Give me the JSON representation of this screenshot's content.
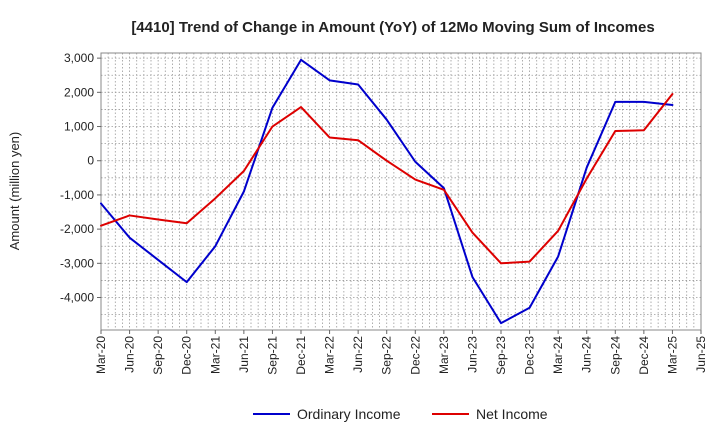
{
  "chart_data": {
    "type": "line",
    "title": "[4410]  Trend of Change in Amount (YoY) of 12Mo Moving Sum of Incomes",
    "xlabel": "",
    "ylabel": "Amount (million yen)",
    "categories": [
      "Mar-20",
      "Jun-20",
      "Sep-20",
      "Dec-20",
      "Mar-21",
      "Jun-21",
      "Sep-21",
      "Dec-21",
      "Mar-22",
      "Jun-22",
      "Sep-22",
      "Dec-22",
      "Mar-23",
      "Jun-23",
      "Sep-23",
      "Dec-23",
      "Mar-24",
      "Jun-24",
      "Sep-24",
      "Dec-24",
      "Mar-25",
      "Jun-25"
    ],
    "ylim": [
      -4950,
      3150
    ],
    "yticks": [
      3000,
      2000,
      1000,
      0,
      -1000,
      -2000,
      -3000,
      -4000
    ],
    "ytick_labels": [
      "3,000",
      "2,000",
      "1,000",
      "0",
      "-1,000",
      "-2,000",
      "-3,000",
      "-4,000"
    ],
    "grid": true,
    "legend_position": "bottom-center",
    "series": [
      {
        "name": "Ordinary Income",
        "color": "#0000cc",
        "values": [
          -1250,
          -2250,
          -2900,
          -3550,
          -2500,
          -900,
          1550,
          2950,
          2350,
          2230,
          1200,
          -30,
          -800,
          -3400,
          -4750,
          -4300,
          -2800,
          -200,
          1720,
          1720,
          1630,
          null
        ]
      },
      {
        "name": "Net Income",
        "color": "#dd0000",
        "values": [
          -1900,
          -1600,
          -1720,
          -1830,
          -1100,
          -300,
          1000,
          1570,
          680,
          600,
          0,
          -550,
          -850,
          -2100,
          -3000,
          -2950,
          -2050,
          -520,
          870,
          890,
          1950,
          null
        ]
      }
    ]
  }
}
